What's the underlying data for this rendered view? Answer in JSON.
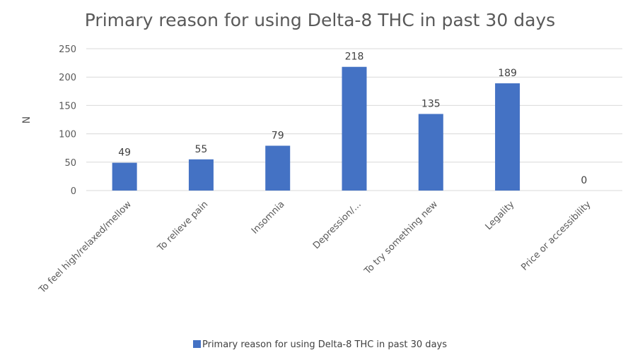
{
  "chart_data": {
    "type": "bar",
    "title": "Primary reason for using Delta-8 THC in past 30 days",
    "ylabel": "N",
    "xlabel": "",
    "categories": [
      "To feel high/relaxed/mellow",
      "To relieve pain",
      "Insomnia",
      "Depression/...",
      "To try something new",
      "Legality",
      "Price or accessibility"
    ],
    "series": [
      {
        "name": "Primary reason for using Delta-8 THC in past 30 days",
        "values": [
          49,
          55,
          79,
          218,
          135,
          189,
          0
        ]
      }
    ],
    "ylim": [
      0,
      250
    ],
    "yticks": [
      0,
      50,
      100,
      150,
      200,
      250
    ],
    "grid": true,
    "legend": "bottom",
    "colors": {
      "bar": "#4472c4",
      "grid": "#d9d9d9",
      "text": "#595959"
    }
  }
}
